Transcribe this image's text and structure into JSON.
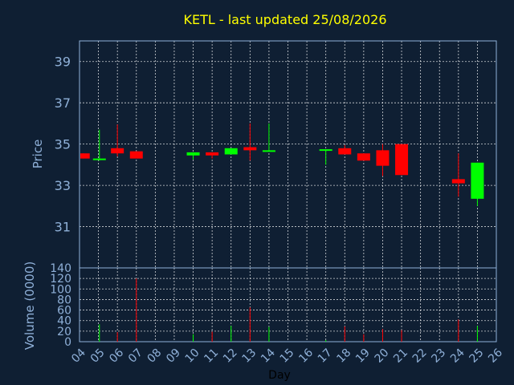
{
  "chart_data": {
    "type": "candlestick",
    "title": "KETL - last updated 25/08/2026",
    "price_panel": {
      "ylabel": "Price",
      "ylim": [
        29.0,
        40.0
      ],
      "yticks": [
        31,
        33,
        35,
        37,
        39
      ],
      "grid": true
    },
    "volume_panel": {
      "ylabel": "Volume (0000)",
      "ylim": [
        0,
        140
      ],
      "yticks": [
        0,
        20,
        40,
        60,
        80,
        100,
        120,
        140
      ],
      "grid": true
    },
    "xlabel": "Day",
    "x_ticks": [
      "04",
      "05",
      "06",
      "07",
      "08",
      "09",
      "10",
      "11",
      "12",
      "13",
      "14",
      "15",
      "16",
      "17",
      "18",
      "19",
      "20",
      "21",
      "22",
      "23",
      "24",
      "25",
      "26"
    ],
    "xlim": [
      4,
      26
    ],
    "bullish_color": "#00ff00",
    "bearish_color": "#ff0000",
    "candles": [
      {
        "x": 4.2,
        "open": 34.55,
        "close": 34.3,
        "high": 34.55,
        "low": 34.3
      },
      {
        "x": 5.05,
        "open": 34.25,
        "close": 34.3,
        "high": 35.7,
        "low": 34.2
      },
      {
        "x": 6.0,
        "open": 34.8,
        "close": 34.55,
        "high": 35.95,
        "low": 34.4
      },
      {
        "x": 7.0,
        "open": 34.65,
        "close": 34.3,
        "high": 34.65,
        "low": 34.3
      },
      {
        "x": 10.0,
        "open": 34.45,
        "close": 34.6,
        "high": 34.6,
        "low": 34.25
      },
      {
        "x": 11.0,
        "open": 34.6,
        "close": 34.45,
        "high": 34.6,
        "low": 34.3
      },
      {
        "x": 12.0,
        "open": 34.5,
        "close": 34.8,
        "high": 34.8,
        "low": 34.5
      },
      {
        "x": 13.0,
        "open": 34.85,
        "close": 34.7,
        "high": 36.0,
        "low": 34.2
      },
      {
        "x": 14.0,
        "open": 34.65,
        "close": 34.7,
        "high": 36.0,
        "low": 34.65
      },
      {
        "x": 17.0,
        "open": 34.7,
        "close": 34.75,
        "high": 34.75,
        "low": 34.0
      },
      {
        "x": 18.0,
        "open": 34.8,
        "close": 34.5,
        "high": 34.95,
        "low": 34.5
      },
      {
        "x": 19.0,
        "open": 34.55,
        "close": 34.2,
        "high": 34.55,
        "low": 34.2
      },
      {
        "x": 20.0,
        "open": 34.7,
        "close": 33.95,
        "high": 35.0,
        "low": 33.45
      },
      {
        "x": 21.0,
        "open": 35.0,
        "close": 33.5,
        "high": 35.0,
        "low": 33.5
      },
      {
        "x": 24.0,
        "open": 33.3,
        "close": 33.1,
        "high": 34.55,
        "low": 32.45
      },
      {
        "x": 25.0,
        "open": 32.35,
        "close": 34.1,
        "high": 34.1,
        "low": 32.0
      }
    ],
    "volume": [
      {
        "x": 5.05,
        "value": 33,
        "direction": "up"
      },
      {
        "x": 6.0,
        "value": 18,
        "direction": "down"
      },
      {
        "x": 7.0,
        "value": 120,
        "direction": "down"
      },
      {
        "x": 10.0,
        "value": 14,
        "direction": "up"
      },
      {
        "x": 11.0,
        "value": 19,
        "direction": "down"
      },
      {
        "x": 12.0,
        "value": 30,
        "direction": "up"
      },
      {
        "x": 13.0,
        "value": 65,
        "direction": "down"
      },
      {
        "x": 14.0,
        "value": 28,
        "direction": "up"
      },
      {
        "x": 17.0,
        "value": 3,
        "direction": "up"
      },
      {
        "x": 18.0,
        "value": 29,
        "direction": "down"
      },
      {
        "x": 19.0,
        "value": 14,
        "direction": "down"
      },
      {
        "x": 20.0,
        "value": 24,
        "direction": "down"
      },
      {
        "x": 21.0,
        "value": 22,
        "direction": "down"
      },
      {
        "x": 24.0,
        "value": 42,
        "direction": "down"
      },
      {
        "x": 25.0,
        "value": 30,
        "direction": "up"
      }
    ]
  }
}
